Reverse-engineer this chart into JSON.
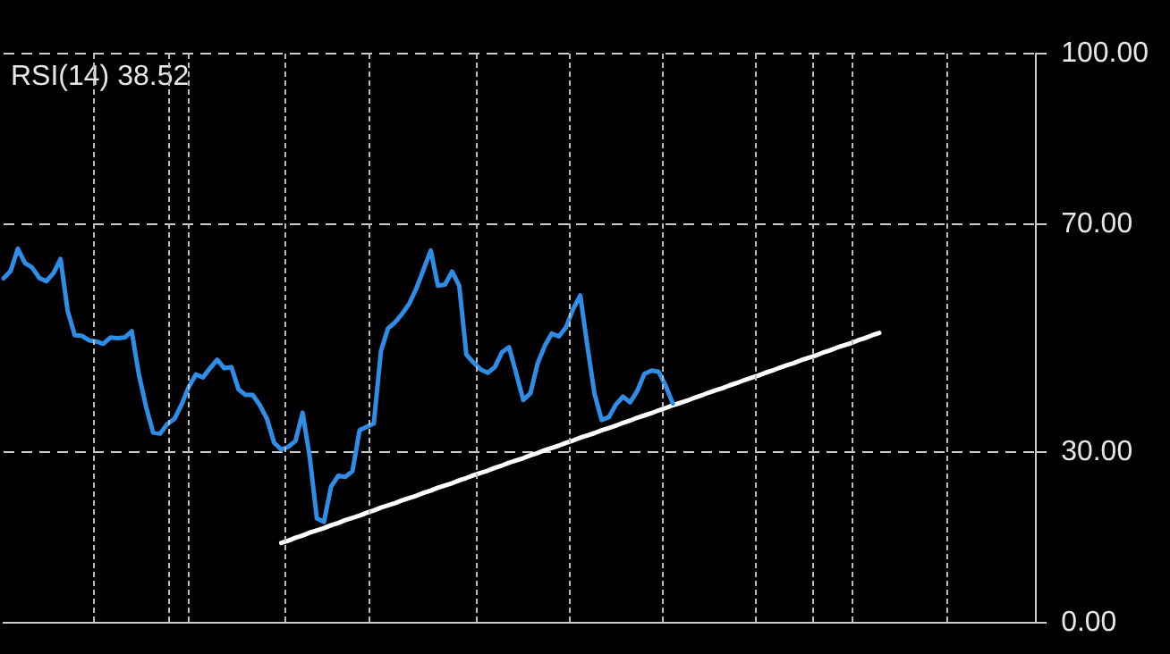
{
  "chart_data": {
    "type": "line",
    "title": "RSI(14) 38.52",
    "tick_labels": "y",
    "grid": "y",
    "marker": "none",
    "legend": false,
    "categories": [
      null,
      null,
      null,
      null,
      null,
      null,
      null,
      null,
      null,
      null,
      null,
      null,
      null,
      null,
      null,
      null,
      null,
      null,
      null,
      null,
      null,
      null,
      null,
      null,
      null,
      null,
      null,
      null,
      null,
      null,
      null,
      null,
      null,
      null,
      null,
      null,
      null,
      null,
      null,
      null,
      null,
      null,
      null,
      null,
      null,
      null,
      null,
      null,
      null,
      null,
      null,
      null,
      null,
      null,
      null,
      null,
      null,
      null,
      null,
      null,
      null,
      null,
      null,
      null,
      null,
      null,
      null,
      null,
      null,
      null,
      null,
      null,
      null,
      null,
      null,
      null,
      null,
      null,
      null,
      null,
      null,
      null,
      null,
      null,
      null,
      null,
      null,
      null,
      null,
      null,
      null,
      null,
      null,
      null,
      null,
      null,
      null,
      null,
      null,
      null,
      null,
      null,
      null,
      null,
      null,
      null,
      null,
      null,
      null,
      null,
      null,
      null,
      null,
      null,
      null,
      null,
      null,
      null,
      null,
      null,
      null,
      null,
      null,
      null,
      null,
      null,
      null,
      null,
      null,
      null,
      null,
      null,
      null,
      null,
      null,
      null,
      null,
      null,
      null,
      null,
      null,
      null,
      null,
      null,
      null,
      null
    ],
    "ylim": [
      0,
      100
    ],
    "yticks": [
      {
        "value": 0,
        "label": "0.00"
      },
      {
        "value": 30,
        "label": "30.00"
      },
      {
        "value": 70,
        "label": "70.00"
      },
      {
        "value": 100,
        "label": "100.00"
      }
    ],
    "series": [
      {
        "color": "#2e8de6",
        "values": [
          60.5,
          61.8,
          65.7,
          63.2,
          62.4,
          60.6,
          60.0,
          61.4,
          63.9,
          54.8,
          50.5,
          50.4,
          49.6,
          49.4,
          49.0,
          50.1,
          50.0,
          50.1,
          51.2,
          43.6,
          38.0,
          33.4,
          33.2,
          34.9,
          35.8,
          38.3,
          41.4,
          43.6,
          43.1,
          44.7,
          46.2,
          44.7,
          44.9,
          41.0,
          40,
          40,
          38.2,
          35.8,
          31.6,
          30.4,
          30.9,
          31.9,
          36.9,
          29.1,
          18.3,
          17.7,
          23.9,
          25.8,
          25.6,
          26.6,
          33.8,
          34.4,
          35,
          47.7,
          51.7,
          52.8,
          54.3,
          56.1,
          58.8,
          62.1,
          65.4,
          59.2,
          59.4,
          61.7,
          59.2,
          47.1,
          45.7,
          44.5,
          43.9,
          44.9,
          47.5,
          48.4,
          43.8,
          39.1,
          40.3,
          45.5,
          48.6,
          50.8,
          50.3,
          51.9,
          55.1,
          57.5,
          48.6,
          40.2,
          35.6,
          36.1,
          38.3,
          39.7,
          38.7,
          40.7,
          43.7,
          44.3,
          44.1,
          41.6,
          38.5,
          null,
          null,
          null,
          null,
          null,
          null,
          null,
          null,
          null,
          null,
          null,
          null,
          null,
          null,
          null,
          null,
          null,
          null,
          null,
          null,
          null,
          null,
          null,
          null,
          null,
          null,
          null,
          null,
          null,
          null,
          null,
          null,
          null,
          null,
          null,
          null,
          null,
          null,
          null,
          null,
          null,
          null,
          null,
          null,
          null,
          null,
          null,
          null,
          null,
          null,
          null
        ]
      },
      {
        "color": "#ffffff",
        "values": [
          null,
          null,
          null,
          null,
          null,
          null,
          null,
          null,
          null,
          null,
          null,
          null,
          null,
          null,
          null,
          null,
          null,
          null,
          null,
          null,
          null,
          null,
          null,
          null,
          null,
          null,
          null,
          null,
          null,
          null,
          null,
          null,
          null,
          null,
          null,
          null,
          null,
          null,
          null,
          14.0,
          14.4,
          14.9,
          15.3,
          15.8,
          16.2,
          16.6,
          17.1,
          17.5,
          18.0,
          18.4,
          18.8,
          19.3,
          19.7,
          20.2,
          20.6,
          21.0,
          21.5,
          21.9,
          22.3,
          22.8,
          23.2,
          23.7,
          24.1,
          24.5,
          25.0,
          25.4,
          25.9,
          26.3,
          26.7,
          27.2,
          27.6,
          28.1,
          28.5,
          28.9,
          29.4,
          29.8,
          30.3,
          30.7,
          31.1,
          31.6,
          32.0,
          32.5,
          32.9,
          33.3,
          33.8,
          34.2,
          34.6,
          35.1,
          35.5,
          36.0,
          36.4,
          36.8,
          37.3,
          37.7,
          38.2,
          38.6,
          39.0,
          39.5,
          39.9,
          40.4,
          40.8,
          41.2,
          41.7,
          42.1,
          42.6,
          43.0,
          43.4,
          43.9,
          44.3,
          44.8,
          45.2,
          45.6,
          46.1,
          46.5,
          46.9,
          47.4,
          47.8,
          48.3,
          48.7,
          49.1,
          49.6,
          50.0,
          50.5,
          50.9,
          null,
          null,
          null,
          null,
          null,
          null,
          null,
          null,
          null,
          null,
          null,
          null,
          null,
          null,
          null,
          null,
          null,
          null,
          null,
          null,
          null,
          null
        ]
      }
    ]
  }
}
